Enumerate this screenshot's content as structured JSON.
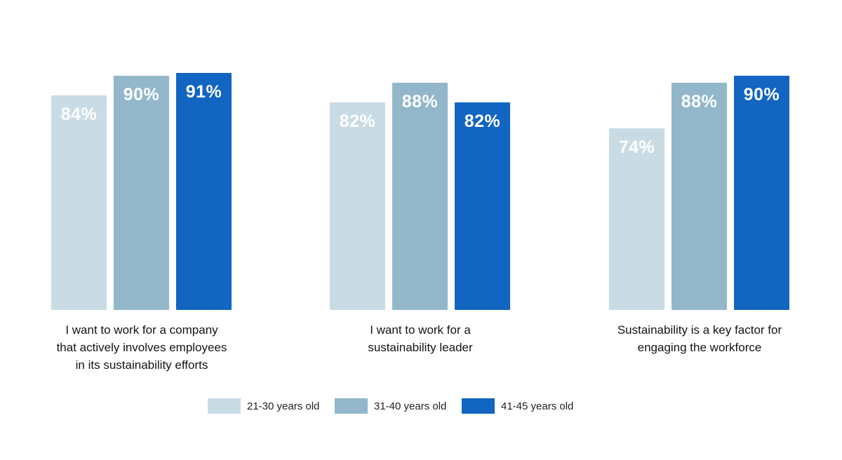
{
  "chart_data": {
    "type": "bar",
    "title": "",
    "categories": [
      "I want to work for a company\nthat actively involves employees\nin its sustainability efforts",
      "I want to work for a\nsustainability leader",
      "Sustainability is a key factor for\nengaging the workforce"
    ],
    "series": [
      {
        "name": "21-30 years old",
        "color": "#C9DCE5",
        "values": [
          84,
          82,
          74
        ]
      },
      {
        "name": "31-40 years old",
        "color": "#92B7CB",
        "values": [
          90,
          88,
          88
        ]
      },
      {
        "name": "41-45 years old",
        "color": "#1265C0",
        "values": [
          91,
          82,
          90
        ]
      }
    ],
    "value_suffix": "%",
    "value_labels": [
      [
        "84%",
        "90%",
        "91%"
      ],
      [
        "82%",
        "88%",
        "82%"
      ],
      [
        "74%",
        "88%",
        "90%"
      ]
    ],
    "xlabel": "",
    "ylabel": "",
    "axis_visible": false,
    "grid": false,
    "legend_position": "bottom",
    "background_color": "#ffffff",
    "value_label_color": "#ffffff"
  }
}
